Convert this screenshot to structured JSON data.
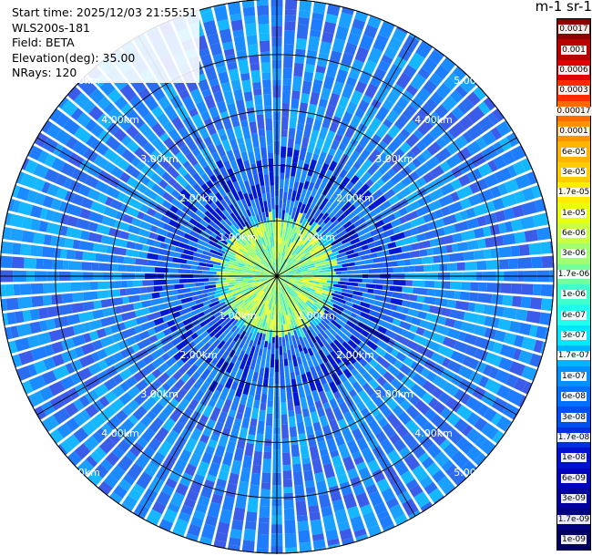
{
  "info": {
    "start_time": "Start time: 2025/12/03 21:55:51",
    "instrument": "WLS200s-181",
    "field": "Field: BETA",
    "elevation": "Elevation(deg): 35.00",
    "nrays": "NRays: 120"
  },
  "colorbar": {
    "units": "m-1 sr-1",
    "levels": [
      "0.0017",
      "0.001",
      "0.0006",
      "0.0003",
      "0.00017",
      "0.0001",
      "6e-05",
      "3e-05",
      "1.7e-05",
      "1e-05",
      "6e-06",
      "3e-06",
      "1.7e-06",
      "1e-06",
      "6e-07",
      "3e-07",
      "1.7e-07",
      "1e-07",
      "6e-08",
      "3e-08",
      "1.7e-08",
      "1e-08",
      "6e-09",
      "3e-09",
      "1.7e-09",
      "1e-09"
    ],
    "colors": [
      "#8b0000",
      "#b80000",
      "#e00000",
      "#ff2a00",
      "#ff6a00",
      "#ff9200",
      "#ffb400",
      "#ffcc00",
      "#ffec00",
      "#e8ff10",
      "#c8ff40",
      "#a0ff70",
      "#70ff9a",
      "#40ffcc",
      "#20ffee",
      "#00e8ff",
      "#00b4ff",
      "#0090ff",
      "#0070ff",
      "#0050f0",
      "#0030e0",
      "#0010d0",
      "#0000c0",
      "#0000a0",
      "#000080",
      "#000060"
    ],
    "light_text_colors": [
      "#8b0000",
      "#b80000",
      "#e00000",
      "#ff2a00",
      "#0050f0",
      "#0030e0",
      "#0010d0",
      "#0000c0",
      "#0000a0",
      "#000080",
      "#000060"
    ]
  },
  "chart_data": {
    "type": "heatmap",
    "projection": "PPI polar",
    "rays": 120,
    "range_unit": "km",
    "range_rings": [
      1,
      2,
      3,
      4,
      5
    ],
    "range_labels": [
      "1.00km",
      "2.00km",
      "3.00km",
      "4.00km",
      "5.00km"
    ]
  }
}
